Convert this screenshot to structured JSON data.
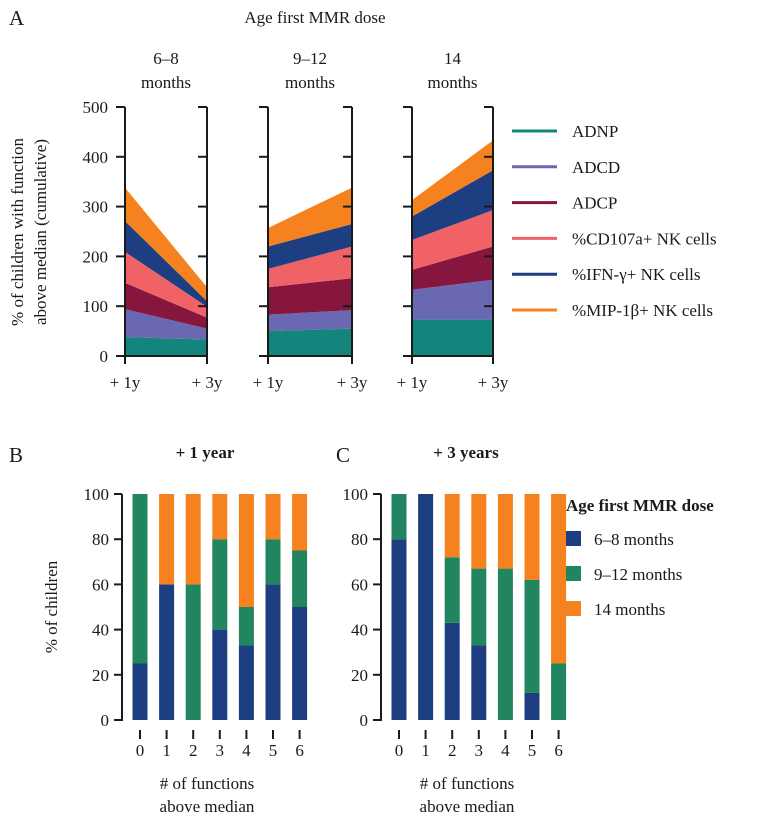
{
  "colors": {
    "ADNP": "#13857c",
    "ADCD": "#6a68b3",
    "ADCP": "#87163f",
    "CD107a": "#f06266",
    "IFNg": "#1d3f82",
    "MIP1b": "#f5821f",
    "m6_8": "#1d3f82",
    "m9_12": "#21855f",
    "m14": "#f5821f",
    "axis": "#1a1a1a"
  },
  "panelA": {
    "letter": "A",
    "super_title": "Age first MMR dose",
    "ylabel_line1": "% of children with function",
    "ylabel_line2": "above median (cumulative)",
    "xticks": [
      "+ 1y",
      "+ 3y"
    ],
    "legend_title": "",
    "legend": [
      {
        "key": "ADNP",
        "label": "ADNP"
      },
      {
        "key": "ADCD",
        "label": "ADCD"
      },
      {
        "key": "ADCP",
        "label": "ADCP"
      },
      {
        "key": "CD107a",
        "label": "%CD107a+ NK cells"
      },
      {
        "key": "IFNg",
        "label": "%IFN-γ+ NK cells"
      },
      {
        "key": "MIP1b",
        "label": "%MIP-1β+ NK cells"
      }
    ],
    "groups": [
      {
        "title_line1": "6–8",
        "title_line2": "months"
      },
      {
        "title_line1": "9–12",
        "title_line2": "months"
      },
      {
        "title_line1": "14",
        "title_line2": "months"
      }
    ]
  },
  "panelB": {
    "letter": "B",
    "title": "+ 1 year",
    "ylabel": "% of children",
    "xlabel_line1": "# of functions",
    "xlabel_line2": "above median"
  },
  "panelC": {
    "letter": "C",
    "title": "+ 3 years",
    "xlabel_line1": "# of functions",
    "xlabel_line2": "above median"
  },
  "legendBC": {
    "title": "Age first MMR dose",
    "items": [
      {
        "key": "m6_8",
        "label": "6–8 months"
      },
      {
        "key": "m9_12",
        "label": "9–12 months"
      },
      {
        "key": "m14",
        "label": "14 months"
      }
    ]
  },
  "chart_data": [
    {
      "type": "area",
      "panel": "A",
      "title": "Age first MMR dose",
      "ylabel": "% of children with function above median (cumulative)",
      "ylim": [
        0,
        500
      ],
      "yticks": [
        0,
        100,
        200,
        300,
        400,
        500
      ],
      "x": [
        "+ 1y",
        "+ 3y"
      ],
      "stacked": true,
      "facets": [
        {
          "name": "6–8 months",
          "series": [
            {
              "name": "ADNP",
              "values": [
                38,
                33
              ]
            },
            {
              "name": "ADCD",
              "values": [
                56,
                22
              ]
            },
            {
              "name": "ADCP",
              "values": [
                53,
                22
              ]
            },
            {
              "name": "%CD107a+ NK cells",
              "values": [
                62,
                22
              ]
            },
            {
              "name": "%IFN-γ+ NK cells",
              "values": [
                62,
                11
              ]
            },
            {
              "name": "%MIP-1β+ NK cells",
              "values": [
                67,
                28
              ]
            }
          ]
        },
        {
          "name": "9–12 months",
          "series": [
            {
              "name": "ADNP",
              "values": [
                50,
                55
              ]
            },
            {
              "name": "ADCD",
              "values": [
                33,
                37
              ]
            },
            {
              "name": "ADCP",
              "values": [
                55,
                64
              ]
            },
            {
              "name": "%CD107a+ NK cells",
              "values": [
                37,
                64
              ]
            },
            {
              "name": "%IFN-γ+ NK cells",
              "values": [
                45,
                45
              ]
            },
            {
              "name": "%MIP-1β+ NK cells",
              "values": [
                37,
                73
              ]
            }
          ]
        },
        {
          "name": "14 months",
          "series": [
            {
              "name": "ADNP",
              "values": [
                73,
                73
              ]
            },
            {
              "name": "ADCD",
              "values": [
                60,
                80
              ]
            },
            {
              "name": "ADCP",
              "values": [
                40,
                67
              ]
            },
            {
              "name": "%CD107a+ NK cells",
              "values": [
                60,
                73
              ]
            },
            {
              "name": "%IFN-γ+ NK cells",
              "values": [
                47,
                80
              ]
            },
            {
              "name": "%MIP-1β+ NK cells",
              "values": [
                33,
                60
              ]
            }
          ]
        }
      ]
    },
    {
      "type": "bar",
      "panel": "B",
      "title": "+ 1 year",
      "xlabel": "# of functions above median",
      "ylabel": "% of children",
      "ylim": [
        0,
        100
      ],
      "yticks": [
        0,
        20,
        40,
        60,
        80,
        100
      ],
      "stacked": true,
      "categories": [
        "0",
        "1",
        "2",
        "3",
        "4",
        "5",
        "6"
      ],
      "series": [
        {
          "name": "6–8 months",
          "values": [
            25,
            60,
            0,
            40,
            33,
            60,
            50
          ]
        },
        {
          "name": "9–12 months",
          "values": [
            75,
            0,
            60,
            40,
            17,
            20,
            25
          ]
        },
        {
          "name": "14 months",
          "values": [
            0,
            40,
            40,
            20,
            50,
            20,
            25
          ]
        }
      ]
    },
    {
      "type": "bar",
      "panel": "C",
      "title": "+ 3 years",
      "xlabel": "# of functions above median",
      "ylim": [
        0,
        100
      ],
      "yticks": [
        0,
        20,
        40,
        60,
        80,
        100
      ],
      "stacked": true,
      "categories": [
        "0",
        "1",
        "2",
        "3",
        "4",
        "5",
        "6"
      ],
      "series": [
        {
          "name": "6–8 months",
          "values": [
            80,
            100,
            43,
            33,
            0,
            12,
            0
          ]
        },
        {
          "name": "9–12 months",
          "values": [
            20,
            0,
            29,
            34,
            67,
            50,
            25
          ]
        },
        {
          "name": "14 months",
          "values": [
            0,
            0,
            28,
            33,
            33,
            38,
            75
          ]
        }
      ]
    }
  ]
}
